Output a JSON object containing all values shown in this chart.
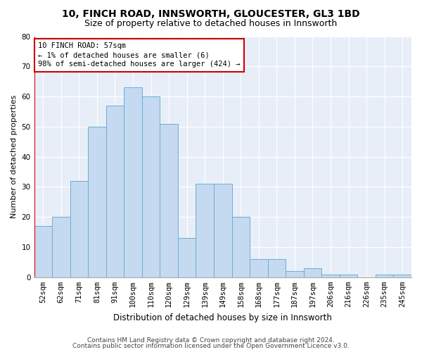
{
  "title1": "10, FINCH ROAD, INNSWORTH, GLOUCESTER, GL3 1BD",
  "title2": "Size of property relative to detached houses in Innsworth",
  "xlabel": "Distribution of detached houses by size in Innsworth",
  "ylabel": "Number of detached properties",
  "categories": [
    "52sqm",
    "62sqm",
    "71sqm",
    "81sqm",
    "91sqm",
    "100sqm",
    "110sqm",
    "120sqm",
    "129sqm",
    "139sqm",
    "149sqm",
    "158sqm",
    "168sqm",
    "177sqm",
    "187sqm",
    "197sqm",
    "206sqm",
    "216sqm",
    "226sqm",
    "235sqm",
    "245sqm"
  ],
  "values": [
    17,
    20,
    32,
    50,
    57,
    63,
    60,
    51,
    13,
    31,
    31,
    20,
    6,
    6,
    2,
    3,
    1,
    1,
    0,
    1,
    1
  ],
  "bar_color": "#c5d9f0",
  "bar_edge_color": "#6baed6",
  "highlight_color": "#cc0000",
  "annotation_line1": "10 FINCH ROAD: 57sqm",
  "annotation_line2": "← 1% of detached houses are smaller (6)",
  "annotation_line3": "98% of semi-detached houses are larger (424) →",
  "annotation_box_color": "#ffffff",
  "annotation_box_edge": "#cc0000",
  "ylim": [
    0,
    80
  ],
  "yticks": [
    0,
    10,
    20,
    30,
    40,
    50,
    60,
    70,
    80
  ],
  "footer1": "Contains HM Land Registry data © Crown copyright and database right 2024.",
  "footer2": "Contains public sector information licensed under the Open Government Licence v3.0.",
  "bg_color": "#ffffff",
  "plot_bg_color": "#e8eef7",
  "grid_color": "#ffffff",
  "title1_fontsize": 10,
  "title2_fontsize": 9,
  "xlabel_fontsize": 8.5,
  "ylabel_fontsize": 8,
  "tick_fontsize": 7.5,
  "footer_fontsize": 6.5
}
